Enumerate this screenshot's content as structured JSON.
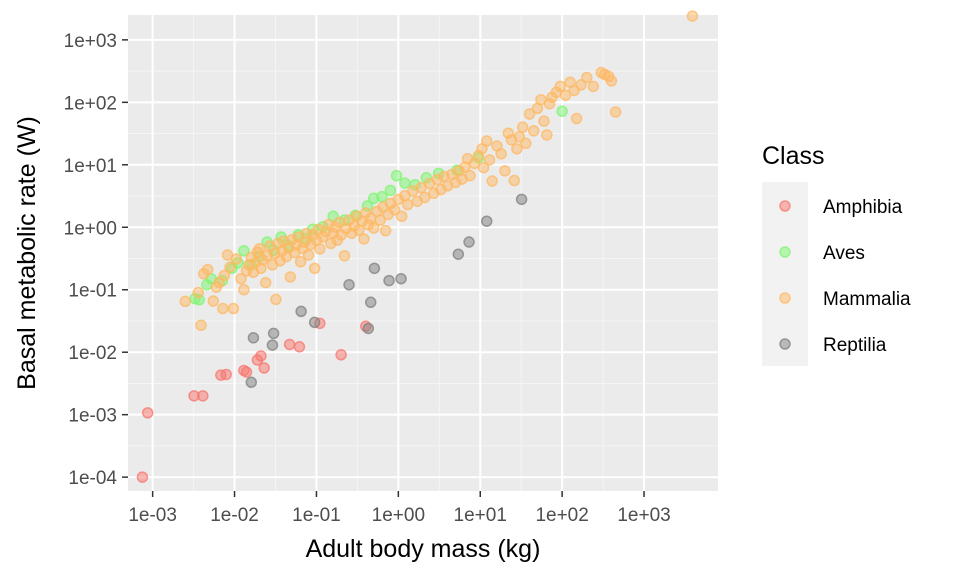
{
  "chart_data": {
    "type": "scatter",
    "title": "",
    "xlabel": "Adult body mass (kg)",
    "ylabel": "Basal metabolic rate (W)",
    "x_scale": "log10",
    "y_scale": "log10",
    "xlim": [
      0.0005,
      8000
    ],
    "ylim": [
      6e-05,
      2500
    ],
    "x_ticks": [
      0.001,
      0.01,
      0.1,
      1,
      10,
      100,
      1000
    ],
    "x_tick_labels": [
      "1e-03",
      "1e-02",
      "1e-01",
      "1e+00",
      "1e+01",
      "1e+02",
      "1e+03"
    ],
    "y_ticks": [
      0.0001,
      0.001,
      0.01,
      0.1,
      1,
      10,
      100,
      1000
    ],
    "y_tick_labels": [
      "1e-04",
      "1e-03",
      "1e-02",
      "1e-01",
      "1e+00",
      "1e+01",
      "1e+02",
      "1e+03"
    ],
    "grid": true,
    "legend": {
      "title": "Class",
      "position": "right"
    },
    "series": [
      {
        "name": "Amphibia",
        "color": "#f8766d",
        "points": [
          [
            0.00075,
            0.0001
          ],
          [
            0.00087,
            0.00107
          ],
          [
            0.0032,
            0.002
          ],
          [
            0.0041,
            0.002
          ],
          [
            0.0068,
            0.0043
          ],
          [
            0.0079,
            0.0044
          ],
          [
            0.013,
            0.0051
          ],
          [
            0.014,
            0.0048
          ],
          [
            0.019,
            0.0075
          ],
          [
            0.021,
            0.0087
          ],
          [
            0.023,
            0.0056
          ],
          [
            0.047,
            0.0133
          ],
          [
            0.062,
            0.0122
          ],
          [
            0.11,
            0.029
          ],
          [
            0.2,
            0.0091
          ],
          [
            0.4,
            0.026
          ]
        ]
      },
      {
        "name": "Aves",
        "color": "#7cf56f",
        "points": [
          [
            0.0033,
            0.072
          ],
          [
            0.0037,
            0.069
          ],
          [
            0.0046,
            0.12
          ],
          [
            0.0052,
            0.15
          ],
          [
            0.0071,
            0.14
          ],
          [
            0.0093,
            0.22
          ],
          [
            0.011,
            0.27
          ],
          [
            0.013,
            0.42
          ],
          [
            0.016,
            0.25
          ],
          [
            0.02,
            0.34
          ],
          [
            0.025,
            0.58
          ],
          [
            0.03,
            0.43
          ],
          [
            0.037,
            0.7
          ],
          [
            0.045,
            0.51
          ],
          [
            0.06,
            0.76
          ],
          [
            0.075,
            0.66
          ],
          [
            0.09,
            0.93
          ],
          [
            0.12,
            1.02
          ],
          [
            0.16,
            1.5
          ],
          [
            0.22,
            1.3
          ],
          [
            0.3,
            1.55
          ],
          [
            0.42,
            2.2
          ],
          [
            0.5,
            2.9
          ],
          [
            0.63,
            3.1
          ],
          [
            0.8,
            3.9
          ],
          [
            0.95,
            6.7
          ],
          [
            1.2,
            5.1
          ],
          [
            1.6,
            4.8
          ],
          [
            2.2,
            6.2
          ],
          [
            3.1,
            7.3
          ],
          [
            5.2,
            8.2
          ],
          [
            9.5,
            13
          ],
          [
            100,
            72
          ]
        ]
      },
      {
        "name": "Mammalia",
        "color": "#fdb863",
        "points": [
          [
            0.0025,
            0.065
          ],
          [
            0.0036,
            0.09
          ],
          [
            0.0039,
            0.027
          ],
          [
            0.0042,
            0.18
          ],
          [
            0.0047,
            0.21
          ],
          [
            0.0055,
            0.066
          ],
          [
            0.006,
            0.11
          ],
          [
            0.0065,
            0.13
          ],
          [
            0.0072,
            0.05
          ],
          [
            0.0075,
            0.17
          ],
          [
            0.0082,
            0.36
          ],
          [
            0.0088,
            0.23
          ],
          [
            0.0097,
            0.05
          ],
          [
            0.0105,
            0.31
          ],
          [
            0.012,
            0.15
          ],
          [
            0.013,
            0.1
          ],
          [
            0.014,
            0.2
          ],
          [
            0.015,
            0.25
          ],
          [
            0.016,
            0.33
          ],
          [
            0.017,
            0.19
          ],
          [
            0.018,
            0.27
          ],
          [
            0.019,
            0.4
          ],
          [
            0.02,
            0.45
          ],
          [
            0.021,
            0.22
          ],
          [
            0.022,
            0.3
          ],
          [
            0.024,
            0.13
          ],
          [
            0.025,
            0.35
          ],
          [
            0.027,
            0.5
          ],
          [
            0.029,
            0.25
          ],
          [
            0.031,
            0.38
          ],
          [
            0.032,
            0.07
          ],
          [
            0.034,
            0.55
          ],
          [
            0.036,
            0.29
          ],
          [
            0.038,
            0.42
          ],
          [
            0.04,
            0.6
          ],
          [
            0.043,
            0.34
          ],
          [
            0.046,
            0.47
          ],
          [
            0.048,
            0.16
          ],
          [
            0.05,
            0.63
          ],
          [
            0.054,
            0.39
          ],
          [
            0.057,
            0.52
          ],
          [
            0.06,
            0.7
          ],
          [
            0.064,
            0.28
          ],
          [
            0.068,
            0.46
          ],
          [
            0.072,
            0.58
          ],
          [
            0.076,
            0.8
          ],
          [
            0.08,
            0.36
          ],
          [
            0.085,
            0.53
          ],
          [
            0.09,
            0.75
          ],
          [
            0.095,
            0.22
          ],
          [
            0.1,
            0.62
          ],
          [
            0.105,
            0.92
          ],
          [
            0.11,
            0.45
          ],
          [
            0.12,
            0.7
          ],
          [
            0.13,
            0.85
          ],
          [
            0.14,
            1.1
          ],
          [
            0.15,
            0.55
          ],
          [
            0.16,
            0.8
          ],
          [
            0.17,
            1.0
          ],
          [
            0.18,
            0.62
          ],
          [
            0.19,
            1.2
          ],
          [
            0.2,
            0.75
          ],
          [
            0.22,
            0.35
          ],
          [
            0.23,
            0.95
          ],
          [
            0.25,
            1.3
          ],
          [
            0.27,
            0.8
          ],
          [
            0.29,
            1.05
          ],
          [
            0.31,
            1.5
          ],
          [
            0.33,
            0.9
          ],
          [
            0.36,
            1.25
          ],
          [
            0.38,
            0.65
          ],
          [
            0.4,
            1.7
          ],
          [
            0.43,
            1.1
          ],
          [
            0.46,
            1.4
          ],
          [
            0.5,
            0.97
          ],
          [
            0.55,
            1.8
          ],
          [
            0.6,
            1.3
          ],
          [
            0.65,
            2.1
          ],
          [
            0.7,
            0.88
          ],
          [
            0.75,
            1.6
          ],
          [
            0.8,
            2.4
          ],
          [
            0.9,
            1.9
          ],
          [
            1.0,
            2.8
          ],
          [
            1.1,
            1.5
          ],
          [
            1.2,
            3.2
          ],
          [
            1.3,
            2.3
          ],
          [
            1.5,
            3.8
          ],
          [
            1.7,
            2.6
          ],
          [
            1.9,
            4.3
          ],
          [
            2.1,
            3.0
          ],
          [
            2.4,
            5.0
          ],
          [
            2.7,
            3.5
          ],
          [
            3.0,
            5.8
          ],
          [
            3.3,
            4.0
          ],
          [
            3.6,
            6.5
          ],
          [
            4.0,
            4.6
          ],
          [
            4.5,
            7.0
          ],
          [
            5.0,
            5.2
          ],
          [
            5.5,
            8.0
          ],
          [
            6.0,
            5.9
          ],
          [
            6.5,
            9.2
          ],
          [
            7.0,
            12.5
          ],
          [
            7.5,
            6.7
          ],
          [
            8.5,
            10.5
          ],
          [
            9.5,
            14.0
          ],
          [
            10.5,
            18.0
          ],
          [
            11.0,
            9.0
          ],
          [
            12.0,
            24.0
          ],
          [
            13.0,
            12.0
          ],
          [
            14.0,
            5.5
          ],
          [
            16.0,
            20.0
          ],
          [
            18.0,
            15.0
          ],
          [
            20.0,
            8.0
          ],
          [
            22.0,
            32.0
          ],
          [
            24.0,
            25.0
          ],
          [
            26.0,
            5.6
          ],
          [
            28.0,
            18.0
          ],
          [
            30.0,
            28.0
          ],
          [
            33.0,
            40.0
          ],
          [
            36.0,
            22.0
          ],
          [
            40.0,
            65.0
          ],
          [
            45.0,
            35.0
          ],
          [
            50.0,
            80.0
          ],
          [
            55.0,
            110.0
          ],
          [
            60.0,
            50.0
          ],
          [
            65.0,
            30.0
          ],
          [
            70.0,
            95.0
          ],
          [
            75.0,
            120.0
          ],
          [
            85.0,
            145.0
          ],
          [
            95.0,
            180.0
          ],
          [
            110.0,
            130.0
          ],
          [
            125.0,
            210.0
          ],
          [
            140.0,
            155.0
          ],
          [
            150.0,
            55.0
          ],
          [
            170.0,
            190.0
          ],
          [
            200.0,
            250.0
          ],
          [
            240.0,
            180.0
          ],
          [
            300.0,
            300.0
          ],
          [
            330.0,
            280.0
          ],
          [
            370.0,
            260.0
          ],
          [
            400.0,
            220.0
          ],
          [
            450.0,
            70.0
          ],
          [
            3900.0,
            2400.0
          ]
        ]
      },
      {
        "name": "Reptilia",
        "color": "#7f7f7f",
        "points": [
          [
            0.016,
            0.0033
          ],
          [
            0.017,
            0.017
          ],
          [
            0.029,
            0.013
          ],
          [
            0.03,
            0.02
          ],
          [
            0.065,
            0.045
          ],
          [
            0.095,
            0.03
          ],
          [
            0.25,
            0.12
          ],
          [
            0.43,
            0.024
          ],
          [
            0.46,
            0.063
          ],
          [
            0.51,
            0.22
          ],
          [
            0.77,
            0.14
          ],
          [
            1.08,
            0.15
          ],
          [
            5.4,
            0.37
          ],
          [
            7.3,
            0.58
          ],
          [
            12.0,
            1.25
          ],
          [
            32.0,
            2.8
          ]
        ]
      }
    ]
  }
}
